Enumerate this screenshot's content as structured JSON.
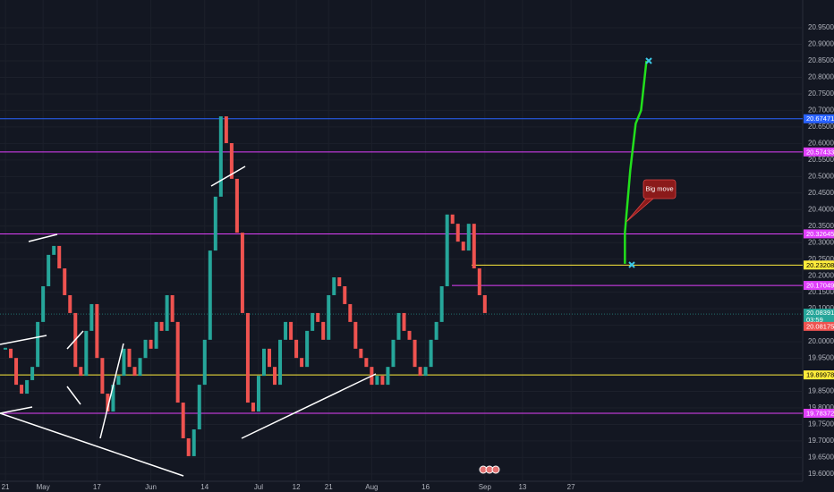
{
  "chart_data": {
    "type": "candlestick",
    "xlim": [
      -1,
      148
    ],
    "ylim": [
      19.578,
      21.034
    ],
    "grid": true,
    "xticks": [
      {
        "value": 0,
        "label": "21"
      },
      {
        "value": 7,
        "label": "May"
      },
      {
        "value": 17,
        "label": "17"
      },
      {
        "value": 27,
        "label": "Jun"
      },
      {
        "value": 37,
        "label": "14"
      },
      {
        "value": 47,
        "label": "Jul"
      },
      {
        "value": 54,
        "label": "12"
      },
      {
        "value": 60,
        "label": "21"
      },
      {
        "value": 68,
        "label": "Aug"
      },
      {
        "value": 78,
        "label": "16"
      },
      {
        "value": 89,
        "label": "Sep"
      },
      {
        "value": 96,
        "label": "13"
      },
      {
        "value": 105,
        "label": "27"
      }
    ],
    "yticks": [
      {
        "value": 19.6,
        "label": "19.60000"
      },
      {
        "value": 19.65,
        "label": "19.65000"
      },
      {
        "value": 19.7,
        "label": "19.70000"
      },
      {
        "value": 19.75,
        "label": "19.75000"
      },
      {
        "value": 19.8,
        "label": "19.80000"
      },
      {
        "value": 19.85,
        "label": "19.85000"
      },
      {
        "value": 19.9,
        "label": "19.90000"
      },
      {
        "value": 19.95,
        "label": "19.95000"
      },
      {
        "value": 20.0,
        "label": "20.00000"
      },
      {
        "value": 20.05,
        "label": "20.05000"
      },
      {
        "value": 20.1,
        "label": "20.10000"
      },
      {
        "value": 20.15,
        "label": "20.15000"
      },
      {
        "value": 20.2,
        "label": "20.20000"
      },
      {
        "value": 20.25,
        "label": "20.25000"
      },
      {
        "value": 20.3,
        "label": "20.30000"
      },
      {
        "value": 20.35,
        "label": "20.35000"
      },
      {
        "value": 20.4,
        "label": "20.40000"
      },
      {
        "value": 20.45,
        "label": "20.45000"
      },
      {
        "value": 20.5,
        "label": "20.50000"
      },
      {
        "value": 20.55,
        "label": "20.55000"
      },
      {
        "value": 20.6,
        "label": "20.60000"
      },
      {
        "value": 20.65,
        "label": "20.65000"
      },
      {
        "value": 20.7,
        "label": "20.70000"
      },
      {
        "value": 20.75,
        "label": "20.75000"
      },
      {
        "value": 20.8,
        "label": "20.80000"
      },
      {
        "value": 20.85,
        "label": "20.85000"
      },
      {
        "value": 20.9,
        "label": "20.90000"
      },
      {
        "value": 20.95,
        "label": "20.95000"
      }
    ],
    "up_color": "#26a69a",
    "down_color": "#ef5350",
    "values": [
      19.979,
      19.951,
      19.87,
      19.843,
      19.884,
      19.924,
      20.06,
      20.168,
      20.263,
      20.29,
      20.222,
      20.141,
      20.087,
      19.924,
      19.897,
      20.033,
      20.114,
      19.951,
      19.843,
      19.789,
      19.87,
      19.897,
      19.979,
      19.924,
      19.897,
      19.951,
      20.006,
      19.979,
      20.06,
      20.033,
      20.141,
      20.06,
      19.816,
      19.708,
      19.654,
      19.735,
      19.87,
      20.006,
      20.276,
      20.439,
      20.682,
      20.601,
      20.493,
      20.33,
      20.087,
      19.816,
      19.789,
      19.897,
      19.979,
      19.924,
      19.87,
      20.006,
      20.06,
      20.006,
      19.951,
      19.924,
      20.033,
      20.087,
      20.06,
      20.006,
      20.141,
      20.195,
      20.168,
      20.114,
      20.06,
      19.979,
      19.951,
      19.924,
      19.87,
      19.897,
      19.87,
      19.924,
      20.006,
      20.087,
      20.033,
      20.006,
      19.924,
      19.897,
      19.924,
      20.006,
      20.06,
      20.168,
      20.385,
      20.357,
      20.303,
      20.276,
      20.357,
      20.222,
      20.141,
      20.087
    ],
    "projection": {
      "color": "#22e01c",
      "x": [
        115,
        115,
        116,
        117,
        118,
        119
      ],
      "values": [
        20.236,
        20.33,
        20.52,
        20.66,
        20.7,
        20.85
      ]
    },
    "levels": [
      {
        "value": 20.67471,
        "color": "#2962ff"
      },
      {
        "value": 20.57433,
        "color": "#e040fb"
      },
      {
        "value": 20.32645,
        "color": "#e040fb"
      },
      {
        "value": 20.23208,
        "color": "#ffeb3b"
      },
      {
        "value": 20.17049,
        "color": "#e040fb"
      },
      {
        "value": 19.89978,
        "color": "#ffeb3b"
      },
      {
        "value": 19.78372,
        "color": "#e040fb"
      }
    ],
    "last_price": {
      "value": 20.08391,
      "countdown": "03:59",
      "color": "#26a69a"
    },
    "prev_price": {
      "value": 20.08175,
      "color": "#ef5350"
    },
    "annotation": "Big move"
  }
}
